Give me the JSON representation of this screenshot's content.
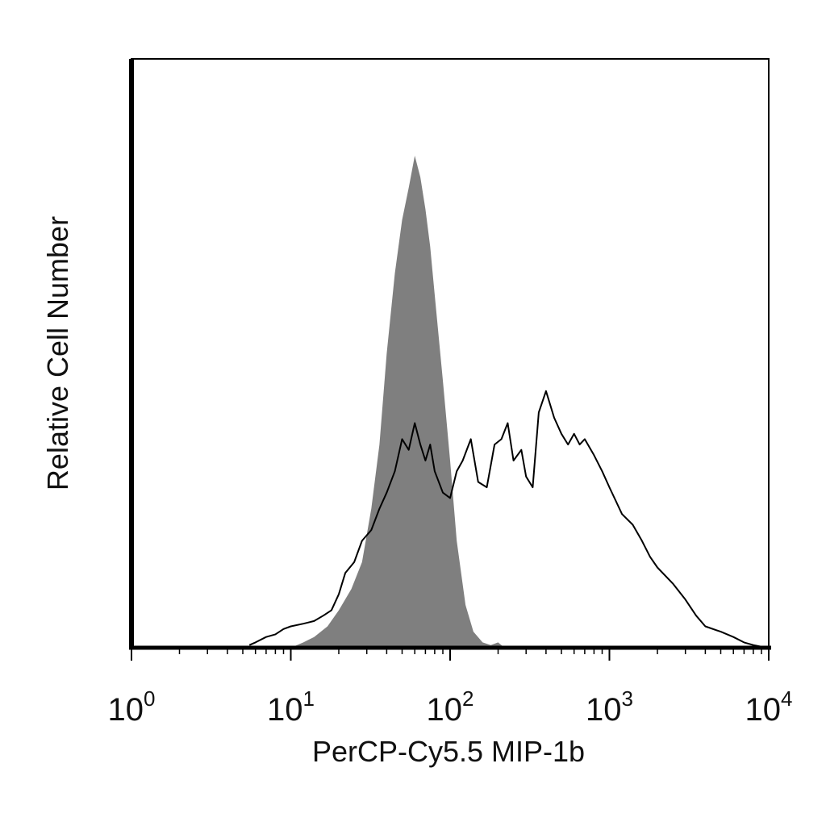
{
  "chart_data": {
    "type": "area",
    "xlabel": "PerCP-Cy5.5 MIP-1b",
    "ylabel": "Relative Cell Number",
    "x_scale": "log",
    "xlim": [
      1,
      10000
    ],
    "ylim": [
      0,
      100
    ],
    "grid": false,
    "x_ticks": [
      {
        "base": "10",
        "exp": "0",
        "value": 1
      },
      {
        "base": "10",
        "exp": "1",
        "value": 10
      },
      {
        "base": "10",
        "exp": "2",
        "value": 100
      },
      {
        "base": "10",
        "exp": "3",
        "value": 1000
      },
      {
        "base": "10",
        "exp": "4",
        "value": 10000
      }
    ],
    "series": [
      {
        "style": "filled",
        "color": "#7f7f7f",
        "x": [
          10,
          12,
          14,
          17,
          20,
          24,
          28,
          32,
          36,
          40,
          45,
          50,
          55,
          60,
          65,
          70,
          75,
          80,
          90,
          100,
          110,
          125,
          140,
          160,
          180,
          200,
          220
        ],
        "y": [
          0,
          1,
          2,
          4,
          7,
          11,
          16,
          26,
          38,
          55,
          70,
          80,
          86,
          92,
          88,
          82,
          75,
          66,
          50,
          35,
          20,
          8,
          3,
          1,
          0.5,
          1,
          0
        ]
      },
      {
        "style": "line",
        "color": "#000000",
        "x": [
          5.5,
          6,
          7,
          8,
          9,
          10,
          12,
          14,
          16,
          18,
          20,
          22,
          25,
          28,
          32,
          36,
          40,
          45,
          50,
          55,
          60,
          65,
          70,
          75,
          80,
          90,
          100,
          110,
          120,
          135,
          150,
          170,
          190,
          210,
          230,
          250,
          280,
          300,
          330,
          360,
          400,
          450,
          500,
          550,
          600,
          650,
          700,
          800,
          900,
          1000,
          1200,
          1400,
          1600,
          1800,
          2000,
          2500,
          3000,
          3500,
          4000,
          5000,
          6000,
          7000,
          8000,
          9000
        ],
        "y": [
          0.5,
          1,
          2,
          2.5,
          3.5,
          4,
          4.5,
          5,
          6,
          7,
          10,
          14,
          16,
          20,
          22,
          26,
          29,
          33,
          39,
          37,
          42,
          38,
          35,
          38,
          33,
          29,
          28,
          33,
          35,
          39,
          31,
          30,
          38,
          39,
          42,
          35,
          37,
          32,
          30,
          44,
          48,
          43,
          40,
          38,
          40,
          38,
          39,
          36,
          33,
          30,
          25,
          23,
          20,
          17,
          15,
          12,
          9,
          6,
          4,
          3,
          2,
          1,
          0.5,
          0.2
        ]
      }
    ]
  }
}
